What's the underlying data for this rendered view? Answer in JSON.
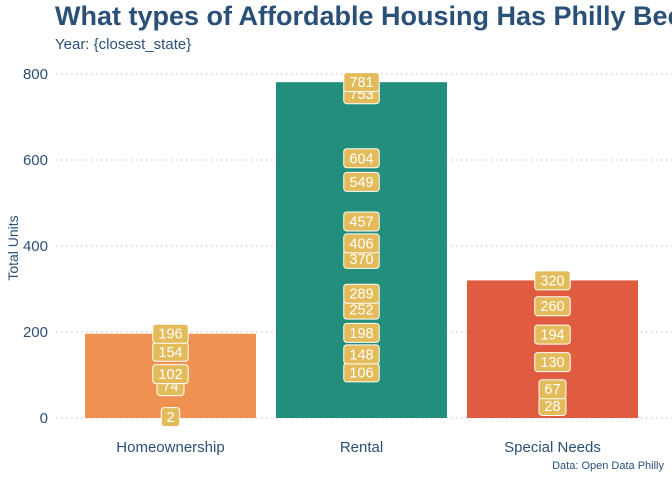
{
  "title": "What types of Affordable Housing Has Philly Bee",
  "subtitle": "Year: {closest_state}",
  "caption": "Data: Open Data Philly",
  "colors": {
    "text": "#2a5078",
    "grid": "#bbbbbb",
    "label_fill": "#e3bb5a",
    "label_stroke": "#ffffff",
    "label_text": "#ffffff"
  },
  "chart_data": {
    "type": "bar",
    "ylabel": "Total Units",
    "xlabel": "",
    "ylim": [
      0,
      830
    ],
    "yticks": [
      0,
      200,
      400,
      600,
      800
    ],
    "grid": true,
    "categories": [
      "Homeownership",
      "Rental",
      "Special Needs"
    ],
    "values": [
      196,
      781,
      320
    ],
    "bar_colors": [
      "#ef9150",
      "#238e7c",
      "#e05c40"
    ],
    "point_labels": [
      [
        196,
        154,
        102,
        74,
        2
      ],
      [
        781,
        753,
        604,
        549,
        457,
        406,
        370,
        289,
        252,
        198,
        148,
        106
      ],
      [
        320,
        260,
        194,
        130,
        67,
        28
      ]
    ]
  }
}
